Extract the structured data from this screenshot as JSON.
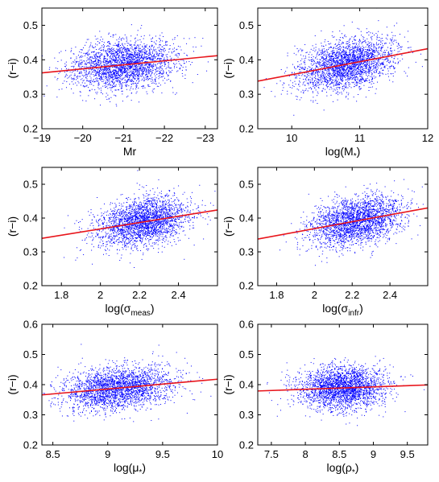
{
  "colors": {
    "points": "#0000ff",
    "fit_line": "#e8151b",
    "axes": "#000000",
    "background": "#ffffff"
  },
  "chart_data": [
    {
      "type": "scatter",
      "panel": "top-left",
      "xlabel": "Mr",
      "ylabel": "(r−i)",
      "xlim": [
        -19,
        -23.3
      ],
      "ylim": [
        0.2,
        0.55
      ],
      "x_reversed": true,
      "xticks": [
        -19,
        -20,
        -21,
        -22,
        -23
      ],
      "xtick_labels": [
        "−19",
        "−20",
        "−21",
        "−22",
        "−23"
      ],
      "yticks": [
        0.2,
        0.3,
        0.4,
        0.5
      ],
      "ytick_labels": [
        "0.2",
        "0.3",
        "0.4",
        "0.5"
      ],
      "scatter_cloud": {
        "n_points": 2500,
        "x_mean": -21.0,
        "x_sd": 0.65,
        "y_mean": 0.39,
        "y_sd": 0.035
      },
      "fit_line": {
        "x": [
          -19,
          -23.3
        ],
        "y": [
          0.362,
          0.412
        ]
      }
    },
    {
      "type": "scatter",
      "panel": "top-right",
      "xlabel": "log(M",
      "xlabel_sub": "*",
      "xlabel_suffix": ")",
      "ylabel": "(r−i)",
      "xlim": [
        9.5,
        12
      ],
      "ylim": [
        0.2,
        0.55
      ],
      "xticks": [
        10,
        11,
        12
      ],
      "xtick_labels": [
        "10",
        "11",
        "12"
      ],
      "yticks": [
        0.2,
        0.3,
        0.4,
        0.5
      ],
      "ytick_labels": [
        "0.2",
        "0.3",
        "0.4",
        "0.5"
      ],
      "scatter_cloud": {
        "n_points": 2500,
        "x_mean": 10.8,
        "x_sd": 0.35,
        "y_mean": 0.39,
        "y_sd": 0.035
      },
      "fit_line": {
        "x": [
          9.5,
          12
        ],
        "y": [
          0.338,
          0.432
        ]
      }
    },
    {
      "type": "scatter",
      "panel": "middle-left",
      "xlabel": "log(σ",
      "xlabel_sub": "meas",
      "xlabel_suffix": ")",
      "ylabel": "(r−i)",
      "xlim": [
        1.7,
        2.6
      ],
      "ylim": [
        0.2,
        0.55
      ],
      "xticks": [
        1.8,
        2,
        2.2,
        2.4
      ],
      "xtick_labels": [
        "1.8",
        "2",
        "2.2",
        "2.4"
      ],
      "yticks": [
        0.2,
        0.3,
        0.4,
        0.5
      ],
      "ytick_labels": [
        "0.2",
        "0.3",
        "0.4",
        "0.5"
      ],
      "scatter_cloud": {
        "n_points": 2500,
        "x_mean": 2.22,
        "x_sd": 0.12,
        "y_mean": 0.39,
        "y_sd": 0.035
      },
      "fit_line": {
        "x": [
          1.7,
          2.6
        ],
        "y": [
          0.34,
          0.424
        ]
      }
    },
    {
      "type": "scatter",
      "panel": "middle-right",
      "xlabel": "log(σ",
      "xlabel_sub": "infr",
      "xlabel_suffix": ")",
      "ylabel": "(r−i)",
      "xlim": [
        1.7,
        2.6
      ],
      "ylim": [
        0.2,
        0.55
      ],
      "xticks": [
        1.8,
        2,
        2.2,
        2.4
      ],
      "xtick_labels": [
        "1.8",
        "2",
        "2.2",
        "2.4"
      ],
      "yticks": [
        0.2,
        0.3,
        0.4,
        0.5
      ],
      "ytick_labels": [
        "0.2",
        "0.3",
        "0.4",
        "0.5"
      ],
      "scatter_cloud": {
        "n_points": 2500,
        "x_mean": 2.22,
        "x_sd": 0.12,
        "y_mean": 0.39,
        "y_sd": 0.035
      },
      "fit_line": {
        "x": [
          1.7,
          2.6
        ],
        "y": [
          0.338,
          0.43
        ]
      }
    },
    {
      "type": "scatter",
      "panel": "bottom-left",
      "xlabel": "log(μ",
      "xlabel_sub": "*",
      "xlabel_suffix": ")",
      "ylabel": "(r−i)",
      "xlim": [
        8.4,
        10
      ],
      "ylim": [
        0.2,
        0.6
      ],
      "xticks": [
        8.5,
        9,
        9.5,
        10
      ],
      "xtick_labels": [
        "8.5",
        "9",
        "9.5",
        "10"
      ],
      "yticks": [
        0.2,
        0.3,
        0.4,
        0.5,
        0.6
      ],
      "ytick_labels": [
        "0.2",
        "0.3",
        "0.4",
        "0.5",
        "0.6"
      ],
      "scatter_cloud": {
        "n_points": 2500,
        "x_mean": 9.1,
        "x_sd": 0.25,
        "y_mean": 0.39,
        "y_sd": 0.035
      },
      "fit_line": {
        "x": [
          8.4,
          10
        ],
        "y": [
          0.366,
          0.418
        ]
      }
    },
    {
      "type": "scatter",
      "panel": "bottom-right",
      "xlabel": "log(ρ",
      "xlabel_sub": "*",
      "xlabel_suffix": ")",
      "ylabel": "(r−i)",
      "xlim": [
        7.3,
        9.8
      ],
      "ylim": [
        0.2,
        0.6
      ],
      "xticks": [
        7.5,
        8,
        8.5,
        9,
        9.5
      ],
      "xtick_labels": [
        "7.5",
        "8",
        "8.5",
        "9",
        "9.5"
      ],
      "yticks": [
        0.2,
        0.3,
        0.4,
        0.5,
        0.6
      ],
      "ytick_labels": [
        "0.2",
        "0.3",
        "0.4",
        "0.5",
        "0.6"
      ],
      "scatter_cloud": {
        "n_points": 2500,
        "x_mean": 8.55,
        "x_sd": 0.32,
        "y_mean": 0.39,
        "y_sd": 0.035
      },
      "fit_line": {
        "x": [
          7.3,
          9.8
        ],
        "y": [
          0.379,
          0.399
        ]
      }
    }
  ]
}
